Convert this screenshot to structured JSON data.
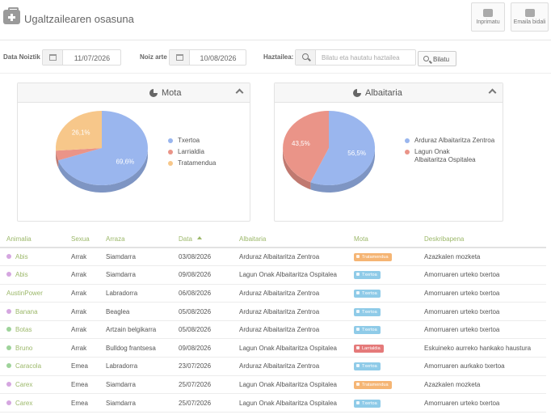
{
  "app": {
    "title": "Ugaltzailearen osasuna"
  },
  "header": {
    "print_label": "Inprimatu",
    "email_label": "Emaila bidali"
  },
  "filters": {
    "from_label": "Data Noiztik",
    "from_value": "11/07/2026",
    "to_label": "Noiz arte",
    "to_value": "10/08/2026",
    "vet_label": "Haztailea:",
    "search_placeholder": "Bilatu eta hautatu haztailea",
    "search_button": "Bilatu"
  },
  "colors": {
    "accent_green": "#9cb86a",
    "pie_blue": "#9ab6ee",
    "pie_red": "#ea9488",
    "pie_orange": "#f7c78a",
    "badge_orange": "#f5b574",
    "badge_blue": "#8fcbe8",
    "badge_red": "#e57a7a"
  },
  "chart_data": [
    {
      "type": "pie",
      "title": "Mota",
      "legend_position": "right",
      "slices": [
        {
          "label": "Txertoa",
          "value": 69.6,
          "label_text": "69,6%",
          "color": "#9ab6ee"
        },
        {
          "label": "Larrialdia",
          "value": 4.3,
          "label_text": "",
          "color": "#ea9488"
        },
        {
          "label": "Tratamendua",
          "value": 26.1,
          "label_text": "26,1%",
          "color": "#f7c78a"
        }
      ]
    },
    {
      "type": "pie",
      "title": "Albaitaria",
      "legend_position": "right",
      "slices": [
        {
          "label": "Arduraz Albaitaritza Zentroa",
          "value": 56.5,
          "label_text": "56,5%",
          "color": "#9ab6ee"
        },
        {
          "label": "Lagun Onak Albaitaritza Ospitalea",
          "value": 43.5,
          "label_text": "43,5%",
          "color": "#ea9488"
        }
      ]
    }
  ],
  "legend2": {
    "item1": "Arduraz Albaitaritza Zentroa",
    "item2_line1": "Lagun Onak",
    "item2_line2": "Albaitaritza Ospitalea"
  },
  "table": {
    "columns": [
      "Animalia",
      "Sexua",
      "Arraza",
      "Data",
      "Albaitaria",
      "Mota",
      "Deskribapena"
    ],
    "rows": [
      {
        "dot": "#d5a6e0",
        "name": "Abis",
        "sex": "Arrak",
        "breed": "Siamdarra",
        "date": "03/08/2026",
        "vet": "Arduraz Albaitaritza Zentroa",
        "type": "Tratamendua",
        "type_color": "#f5b574",
        "desc": "Azazkalen mozketa"
      },
      {
        "dot": "#d5a6e0",
        "name": "Abis",
        "sex": "Arrak",
        "breed": "Siamdarra",
        "date": "09/08/2026",
        "vet": "Lagun Onak Albaitaritza Ospitalea",
        "type": "Txertoa",
        "type_color": "#8fcbe8",
        "desc": "Amorruaren urteko txertoa"
      },
      {
        "dot": "",
        "name": "AustinPower",
        "sex": "Arrak",
        "breed": "Labradorra",
        "date": "06/08/2026",
        "vet": "Arduraz Albaitaritza Zentroa",
        "type": "Txertoa",
        "type_color": "#8fcbe8",
        "desc": "Amorruaren urteko txertoa"
      },
      {
        "dot": "#d5a6e0",
        "name": "Banana",
        "sex": "Arrak",
        "breed": "Beaglea",
        "date": "05/08/2026",
        "vet": "Arduraz Albaitaritza Zentroa",
        "type": "Txertoa",
        "type_color": "#8fcbe8",
        "desc": "Amorruaren urteko txertoa"
      },
      {
        "dot": "#9ed39a",
        "name": "Botas",
        "sex": "Arrak",
        "breed": "Artzain belgikarra",
        "date": "05/08/2026",
        "vet": "Arduraz Albaitaritza Zentroa",
        "type": "Txertoa",
        "type_color": "#8fcbe8",
        "desc": "Amorruaren urteko txertoa"
      },
      {
        "dot": "#9ed39a",
        "name": "Bruno",
        "sex": "Arrak",
        "breed": "Bulldog frantsesa",
        "date": "09/08/2026",
        "vet": "Lagun Onak Albaitaritza Ospitalea",
        "type": "Larrialdia",
        "type_color": "#e57a7a",
        "desc": "Eskuineko aurreko hankako haustura"
      },
      {
        "dot": "#9ed39a",
        "name": "Caracola",
        "sex": "Emea",
        "breed": "Labradorra",
        "date": "23/07/2026",
        "vet": "Arduraz Albaitaritza Zentroa",
        "type": "Txertoa",
        "type_color": "#8fcbe8",
        "desc": "Amorruaren aurkako txertoa"
      },
      {
        "dot": "#d5a6e0",
        "name": "Carex",
        "sex": "Emea",
        "breed": "Siamdarra",
        "date": "25/07/2026",
        "vet": "Lagun Onak Albaitaritza Ospitalea",
        "type": "Tratamendua",
        "type_color": "#f5b574",
        "desc": "Azazkalen mozketa"
      },
      {
        "dot": "#d5a6e0",
        "name": "Carex",
        "sex": "Emea",
        "breed": "Siamdarra",
        "date": "25/07/2026",
        "vet": "Lagun Onak Albaitaritza Ospitalea",
        "type": "Txertoa",
        "type_color": "#8fcbe8",
        "desc": "Amorruaren urteko txertoa"
      }
    ]
  }
}
